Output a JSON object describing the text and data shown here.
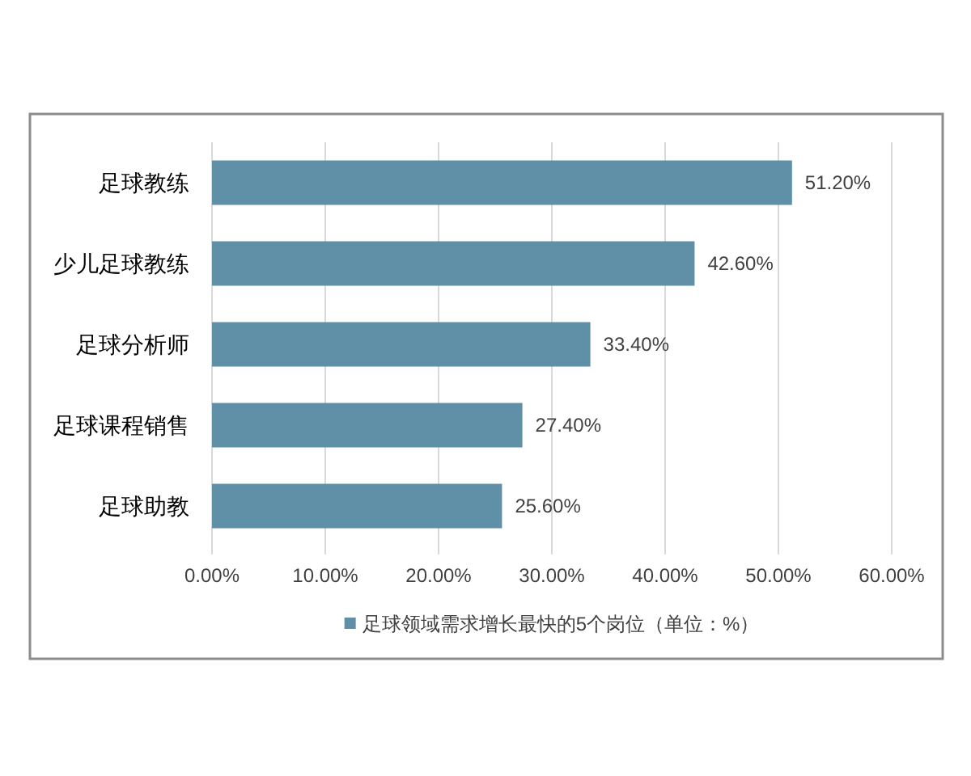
{
  "chart_data": {
    "type": "bar",
    "orientation": "horizontal",
    "categories": [
      "足球教练",
      "少儿足球教练",
      "足球分析师",
      "足球课程销售",
      "足球助教"
    ],
    "series": [
      {
        "name": "足球领域需求增长最快的5个岗位（单位：%）",
        "color": "#5f90a8",
        "values": [
          51.2,
          42.6,
          33.4,
          27.4,
          25.6
        ],
        "value_labels": [
          "51.20%",
          "42.60%",
          "33.40%",
          "27.40%",
          "25.60%"
        ]
      }
    ],
    "xlim": [
      0,
      60
    ],
    "xticks": [
      {
        "value": 0,
        "label": "0.00%"
      },
      {
        "value": 10,
        "label": "10.00%"
      },
      {
        "value": 20,
        "label": "20.00%"
      },
      {
        "value": 30,
        "label": "30.00%"
      },
      {
        "value": 40,
        "label": "40.00%"
      },
      {
        "value": 50,
        "label": "50.00%"
      },
      {
        "value": 60,
        "label": "60.00%"
      }
    ],
    "grid": "x",
    "legend": "bottom"
  }
}
